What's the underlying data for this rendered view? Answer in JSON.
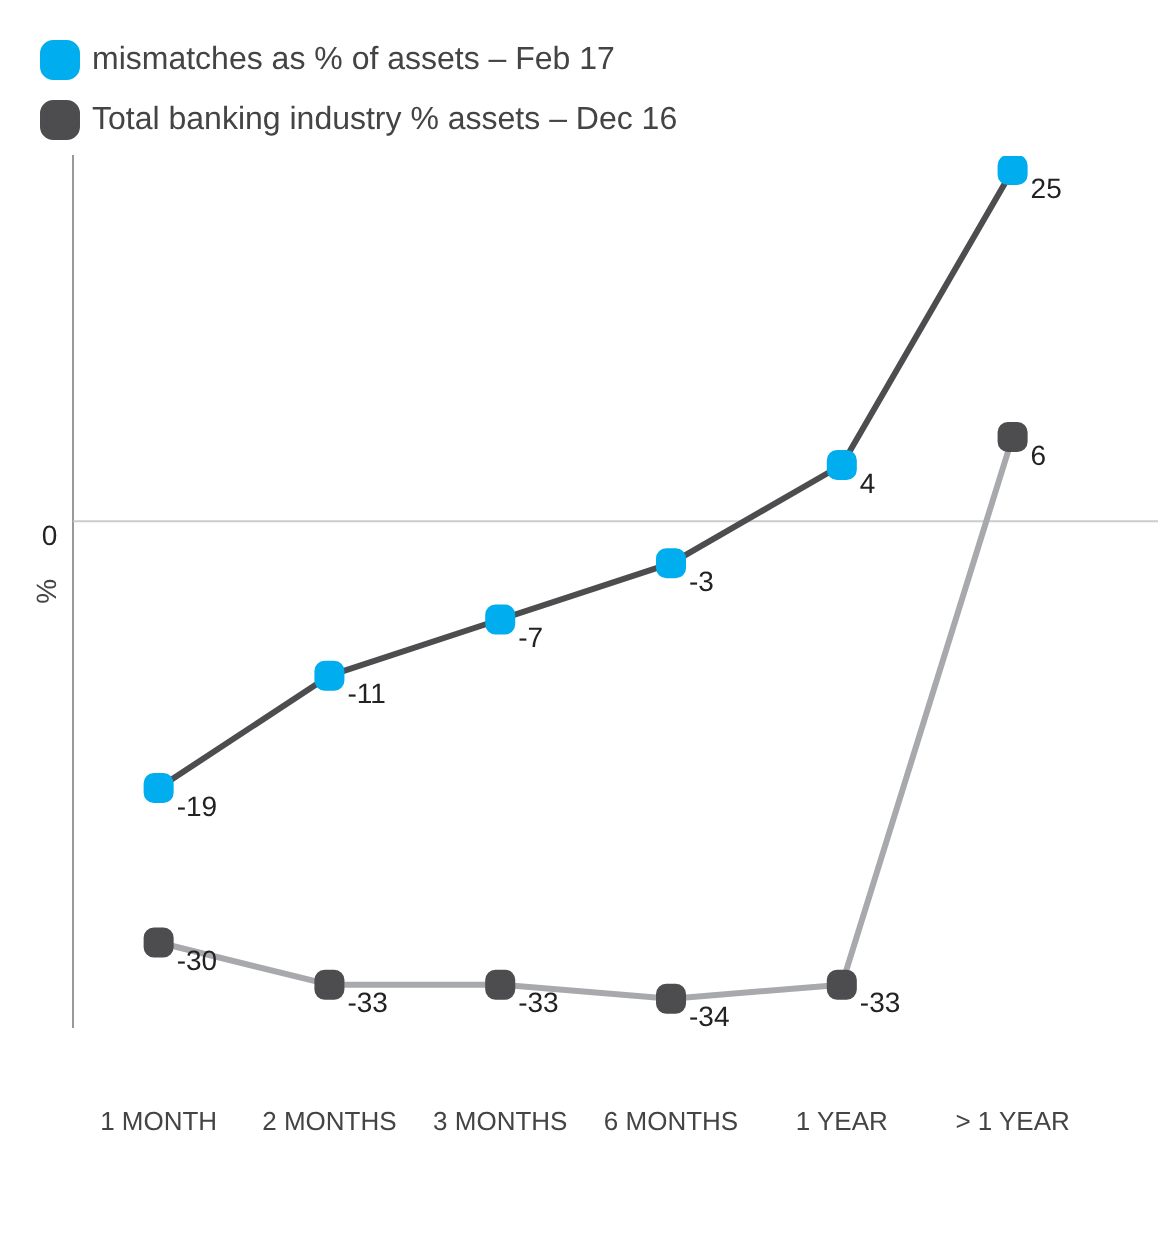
{
  "chart_data": {
    "type": "line",
    "ylabel": "%",
    "categories": [
      "1 MONTH",
      "2 MONTHS",
      "3 MONTHS",
      "6 MONTHS",
      "1 YEAR",
      "> 1 YEAR"
    ],
    "series": [
      {
        "name": "mismatches as % of assets – Feb 17",
        "color": "#00aeef",
        "values": [
          -19,
          -11,
          -7,
          -3,
          4,
          25
        ]
      },
      {
        "name": "Total banking industry % assets – Dec 16",
        "color": "#4d4d4f",
        "values": [
          -30,
          -33,
          -33,
          -34,
          -33,
          6
        ]
      }
    ],
    "ylim": [
      -36,
      26
    ],
    "ref_lines": [
      {
        "axis": "y",
        "value": 0,
        "label": "0"
      }
    ],
    "legend": "top left",
    "marker": "square",
    "line_style": "solid",
    "data_labels": true
  }
}
